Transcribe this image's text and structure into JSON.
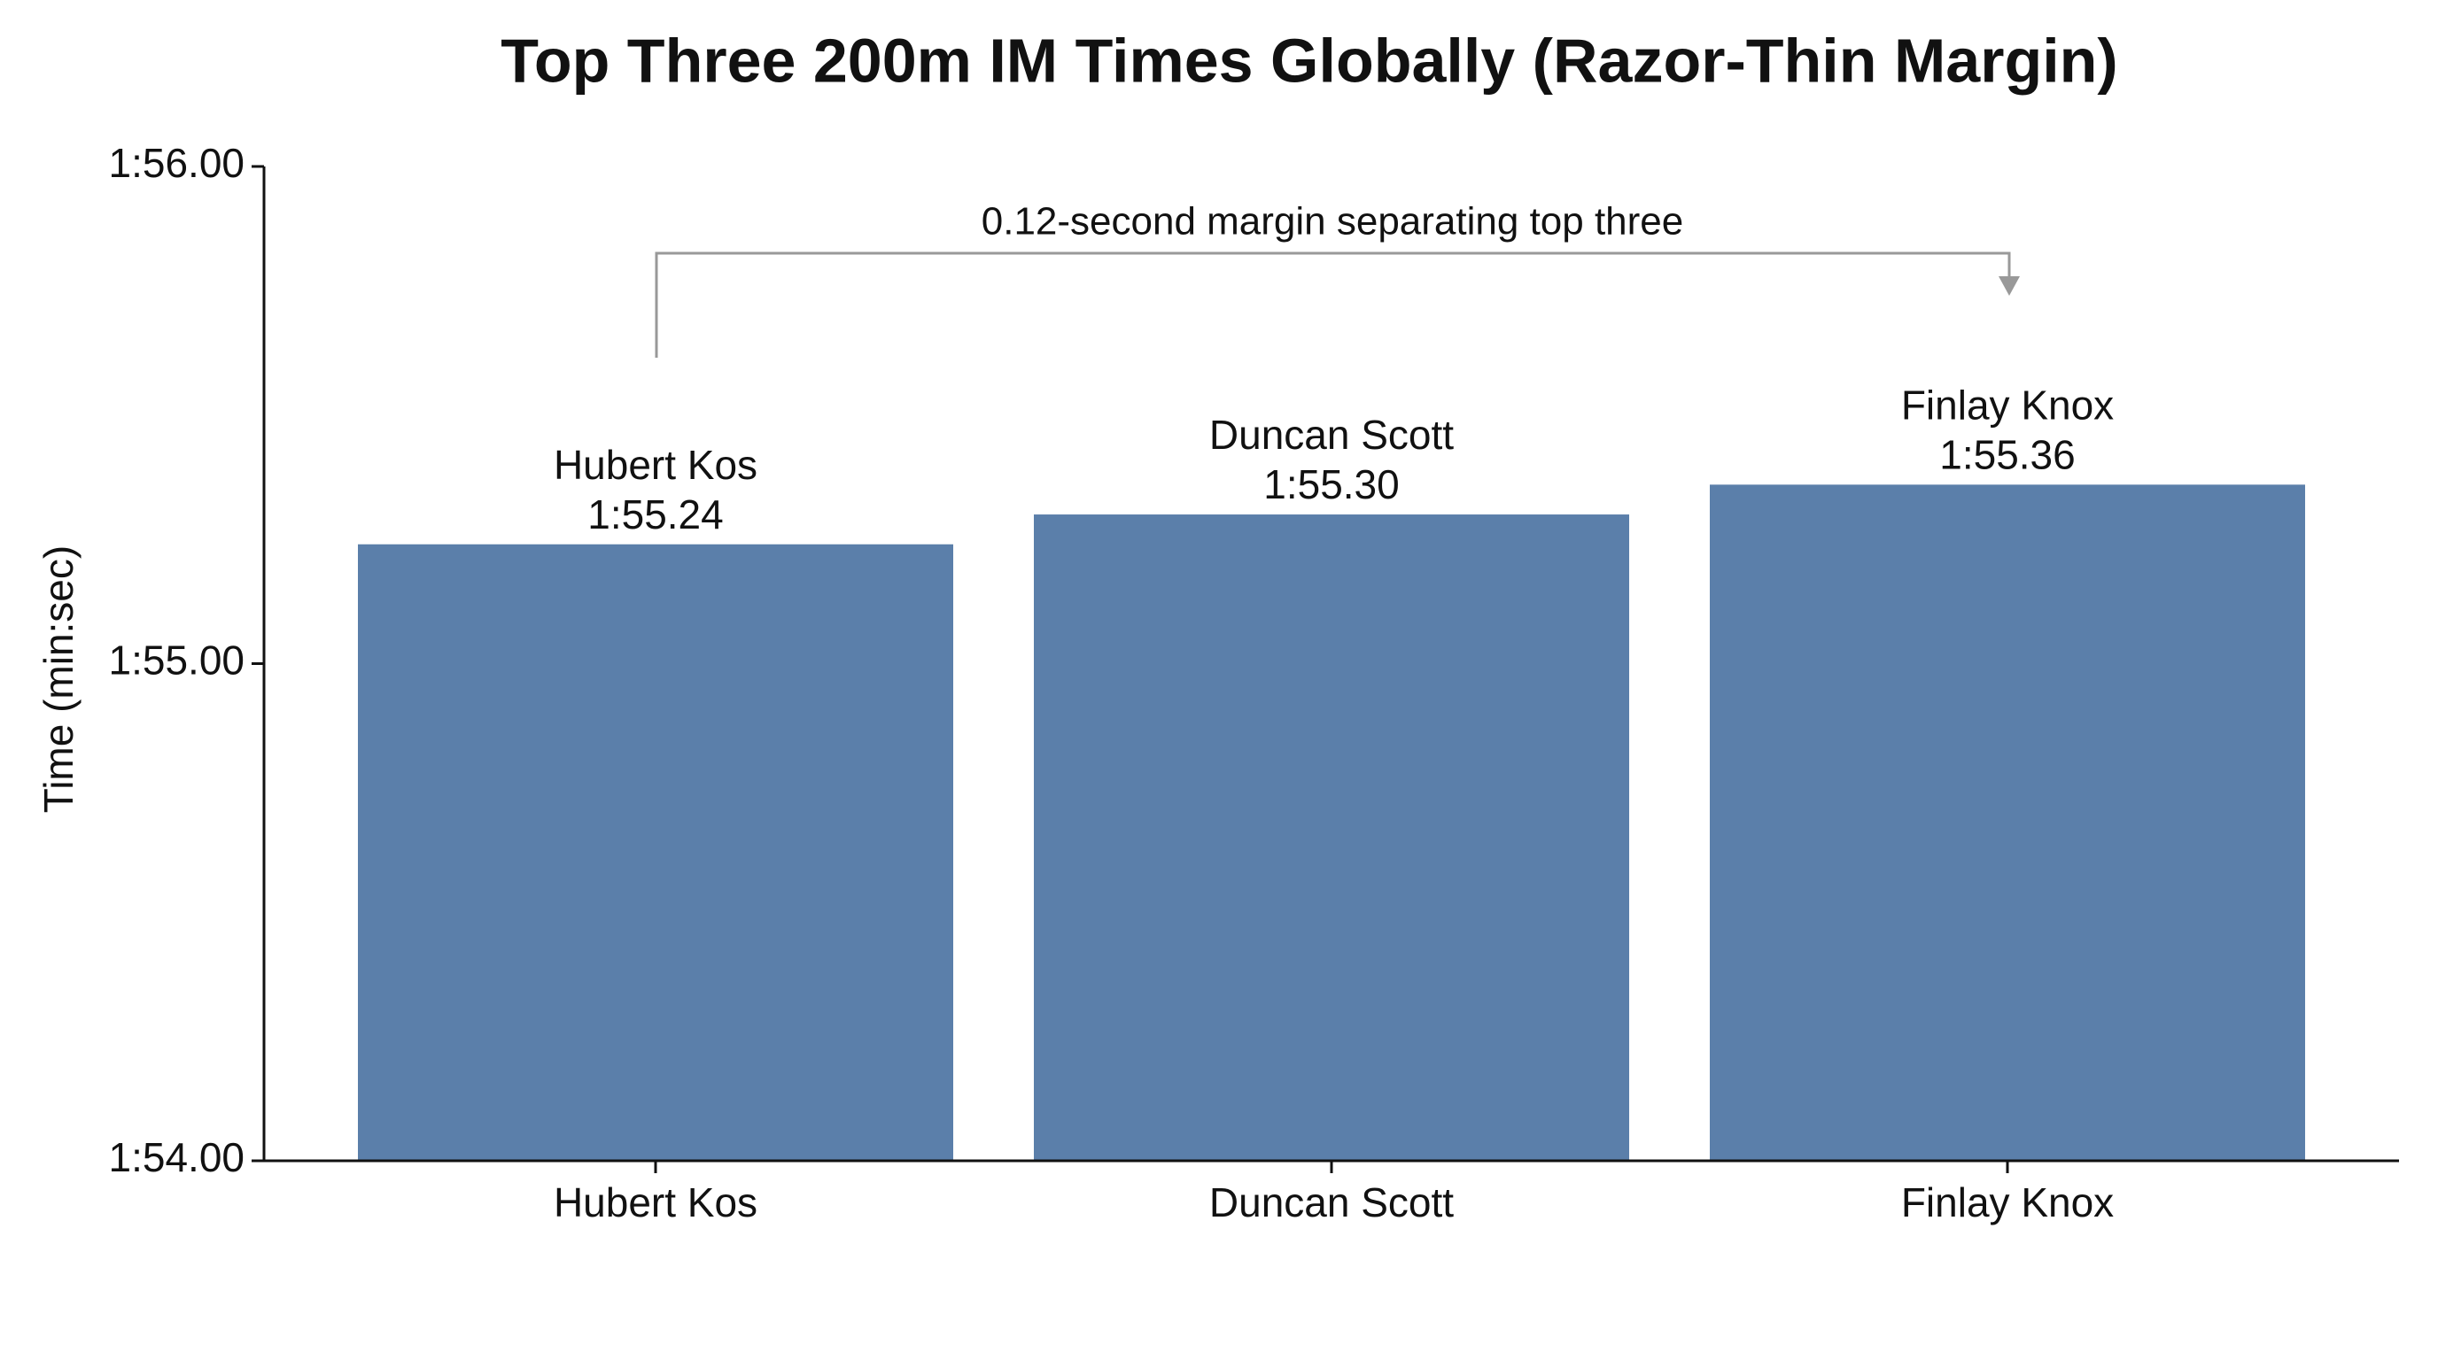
{
  "chart_data": {
    "type": "bar",
    "title": "Top Three 200m IM Times Globally (Razor-Thin Margin)",
    "y_label": "Time (min:sec)",
    "annotation": "0.12-second margin separating top three",
    "categories": [
      "Hubert Kos",
      "Duncan Scott",
      "Finlay Knox"
    ],
    "values": [
      115.24,
      115.3,
      115.36
    ],
    "value_labels": [
      "1:55.24",
      "1:55.30",
      "1:55.36"
    ],
    "color": "#5b7faa",
    "ylim": [
      114,
      116
    ],
    "yticks": [
      {
        "value": 114,
        "label": "1:54.00"
      },
      {
        "value": 115,
        "label": "1:55.00"
      },
      {
        "value": 116,
        "label": "1:56.00"
      }
    ],
    "grid": false
  }
}
